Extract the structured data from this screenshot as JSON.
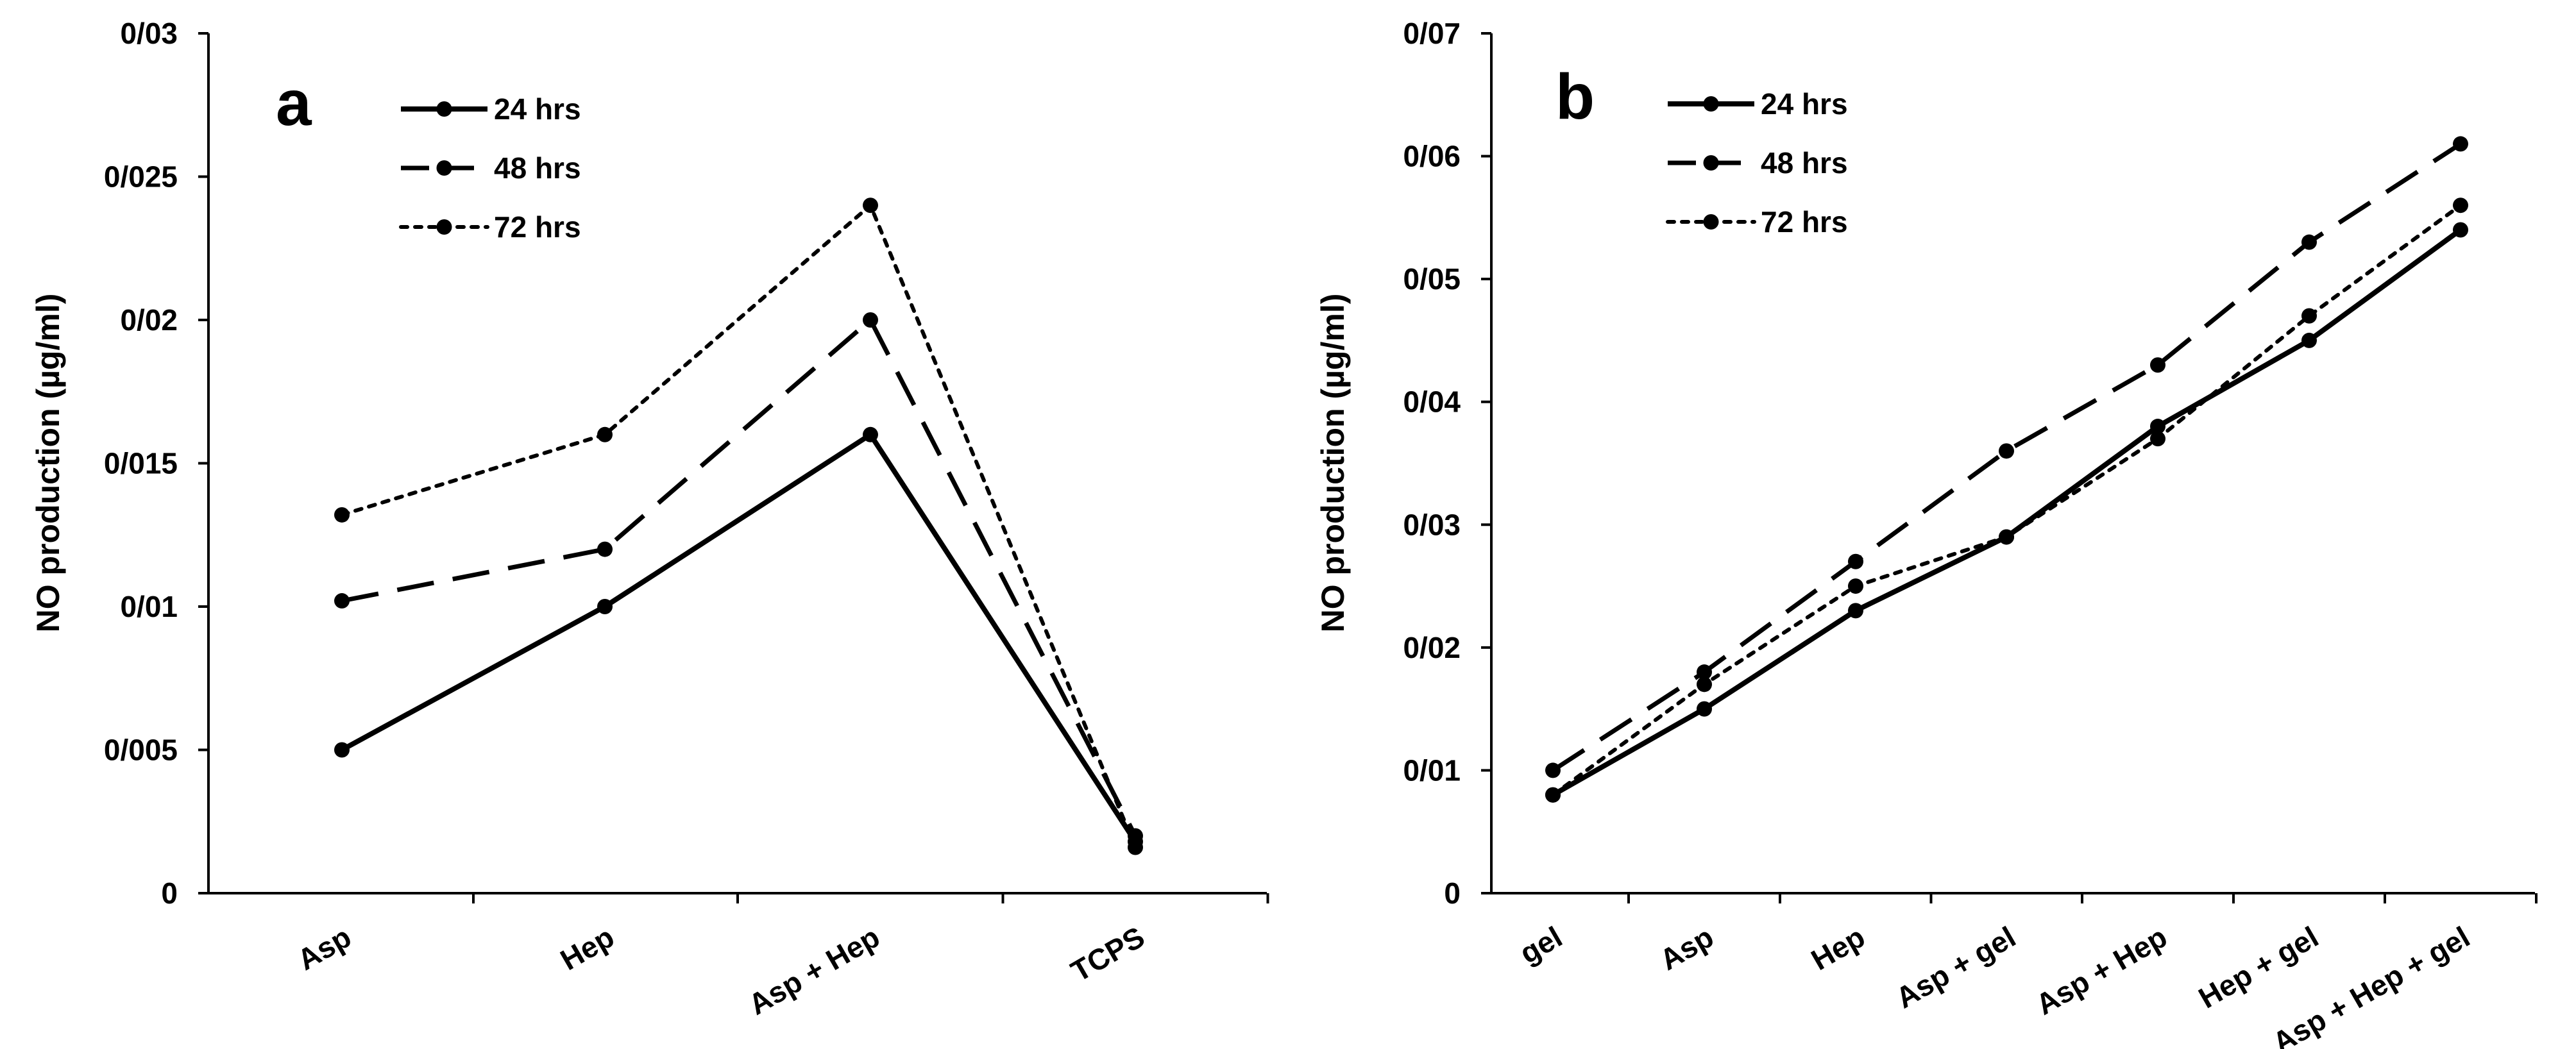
{
  "chart_data": [
    {
      "type": "line",
      "panel_label": "a",
      "title": "",
      "xlabel": "",
      "ylabel": "NO production (µg/ml)",
      "categories": [
        "Asp",
        "Hep",
        "Asp + Hep",
        "TCPS"
      ],
      "ylim": [
        0,
        0.03
      ],
      "yticks": [
        0,
        0.005,
        0.01,
        0.015,
        0.02,
        0.025,
        0.03
      ],
      "ytick_labels": [
        "0",
        "0/005",
        "0/01",
        "0/015",
        "0/02",
        "0/025",
        "0/03"
      ],
      "grid": false,
      "legend_position": "top-left",
      "series": [
        {
          "name": "24 hrs",
          "style": "solid",
          "values": [
            0.005,
            0.01,
            0.016,
            0.0018
          ]
        },
        {
          "name": "48 hrs",
          "style": "dashed",
          "values": [
            0.0102,
            0.012,
            0.02,
            0.002
          ]
        },
        {
          "name": "72 hrs",
          "style": "dotted",
          "values": [
            0.0132,
            0.016,
            0.024,
            0.0016
          ]
        }
      ]
    },
    {
      "type": "line",
      "panel_label": "b",
      "title": "",
      "xlabel": "",
      "ylabel": "NO production (µg/ml)",
      "categories": [
        "gel",
        "Asp",
        "Hep",
        "Asp + gel",
        "Asp + Hep",
        "Hep + gel",
        "Asp + Hep + gel"
      ],
      "ylim": [
        0,
        0.07
      ],
      "yticks": [
        0,
        0.01,
        0.02,
        0.03,
        0.04,
        0.05,
        0.06,
        0.07
      ],
      "ytick_labels": [
        "0",
        "0/01",
        "0/02",
        "0/03",
        "0/04",
        "0/05",
        "0/06",
        "0/07"
      ],
      "grid": false,
      "legend_position": "top-left",
      "series": [
        {
          "name": "24 hrs",
          "style": "solid",
          "values": [
            0.008,
            0.015,
            0.023,
            0.029,
            0.038,
            0.045,
            0.054
          ]
        },
        {
          "name": "48 hrs",
          "style": "dashed",
          "values": [
            0.01,
            0.018,
            0.027,
            0.036,
            0.043,
            0.053,
            0.061
          ]
        },
        {
          "name": "72 hrs",
          "style": "dotted",
          "values": [
            0.008,
            0.017,
            0.025,
            0.029,
            0.037,
            0.047,
            0.056
          ]
        }
      ]
    }
  ]
}
